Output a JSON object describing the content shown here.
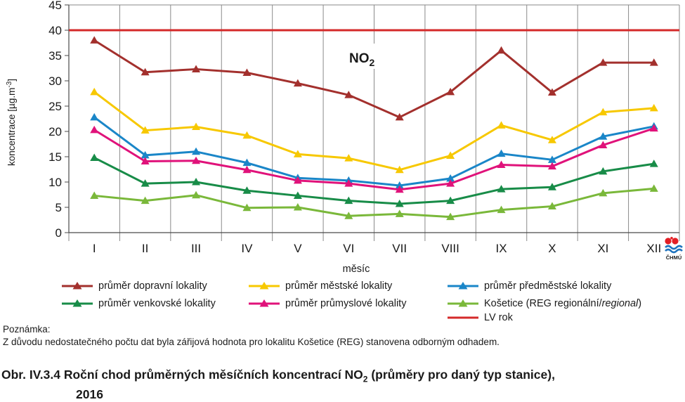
{
  "chart_data": {
    "type": "line",
    "title": "NO2",
    "ylabel": "koncentrace [µg.m-3]",
    "xlabel": "měsíc",
    "ylim": [
      0,
      45
    ],
    "yticks": [
      0,
      5,
      10,
      15,
      20,
      25,
      30,
      35,
      40,
      45
    ],
    "categories": [
      "I",
      "II",
      "III",
      "IV",
      "V",
      "VI",
      "VII",
      "VIII",
      "IX",
      "X",
      "XI",
      "XII"
    ],
    "grid": "vertical",
    "legend_position": "bottom",
    "limit_line": {
      "name": "LV rok",
      "value": 40,
      "color": "#d42a2a"
    },
    "series": [
      {
        "name": "průměr dopravní lokality",
        "color": "#a3302d",
        "values": [
          38.0,
          31.7,
          32.3,
          31.6,
          29.5,
          27.2,
          22.8,
          27.8,
          36.0,
          27.7,
          33.6,
          33.6
        ]
      },
      {
        "name": "průměr městské lokality",
        "color": "#f7c800",
        "values": [
          27.8,
          20.2,
          20.9,
          19.2,
          15.5,
          14.7,
          12.4,
          15.2,
          21.2,
          18.3,
          23.8,
          24.6
        ]
      },
      {
        "name": "průměr předměstské lokality",
        "color": "#1a86c8",
        "values": [
          22.8,
          15.3,
          16.0,
          13.8,
          10.8,
          10.3,
          9.3,
          10.7,
          15.6,
          14.4,
          19.0,
          21.0
        ]
      },
      {
        "name": "průměr venkovské lokality",
        "color": "#188c48",
        "values": [
          14.8,
          9.7,
          10.0,
          8.3,
          7.3,
          6.3,
          5.7,
          6.3,
          8.6,
          9.0,
          12.1,
          13.6
        ]
      },
      {
        "name": "průměr průmyslové lokality",
        "color": "#e0127a",
        "values": [
          20.3,
          14.1,
          14.2,
          12.4,
          10.3,
          9.7,
          8.5,
          9.7,
          13.4,
          13.1,
          17.3,
          20.6
        ]
      },
      {
        "name": "Košetice (REG regionální/regional)",
        "color": "#7ab83a",
        "values": [
          7.3,
          6.3,
          7.4,
          4.9,
          5.0,
          3.3,
          3.7,
          3.1,
          4.5,
          5.2,
          7.8,
          8.7
        ]
      }
    ]
  },
  "legend": {
    "s0": "průměr dopravní lokality",
    "s1": "průměr městské lokality",
    "s2": "průměr předměstské lokality",
    "s3": "průměr venkovské lokality",
    "s4": "průměr průmyslové lokality",
    "s5_a": "Košetice (REG regionální/",
    "s5_b": "regional",
    "s5_c": ")",
    "lv": "LV rok"
  },
  "note": {
    "heading": "Poznámka:",
    "text": "Z důvodu nedostatečného počtu dat byla zářijová hodnota pro lokalitu Košetice (REG) stanovena odborným odhadem."
  },
  "caption": {
    "line1_a": "Obr. IV.3.4  Roční chod průměrných měsíčních koncentrací NO",
    "line1_sub": "2",
    "line1_b": " (průměry pro daný typ stanice),",
    "line2": "2016"
  },
  "logo": {
    "text": "ČHMÚ",
    "colors": {
      "dots": "#e31e24",
      "wave": "#1e73be"
    }
  }
}
